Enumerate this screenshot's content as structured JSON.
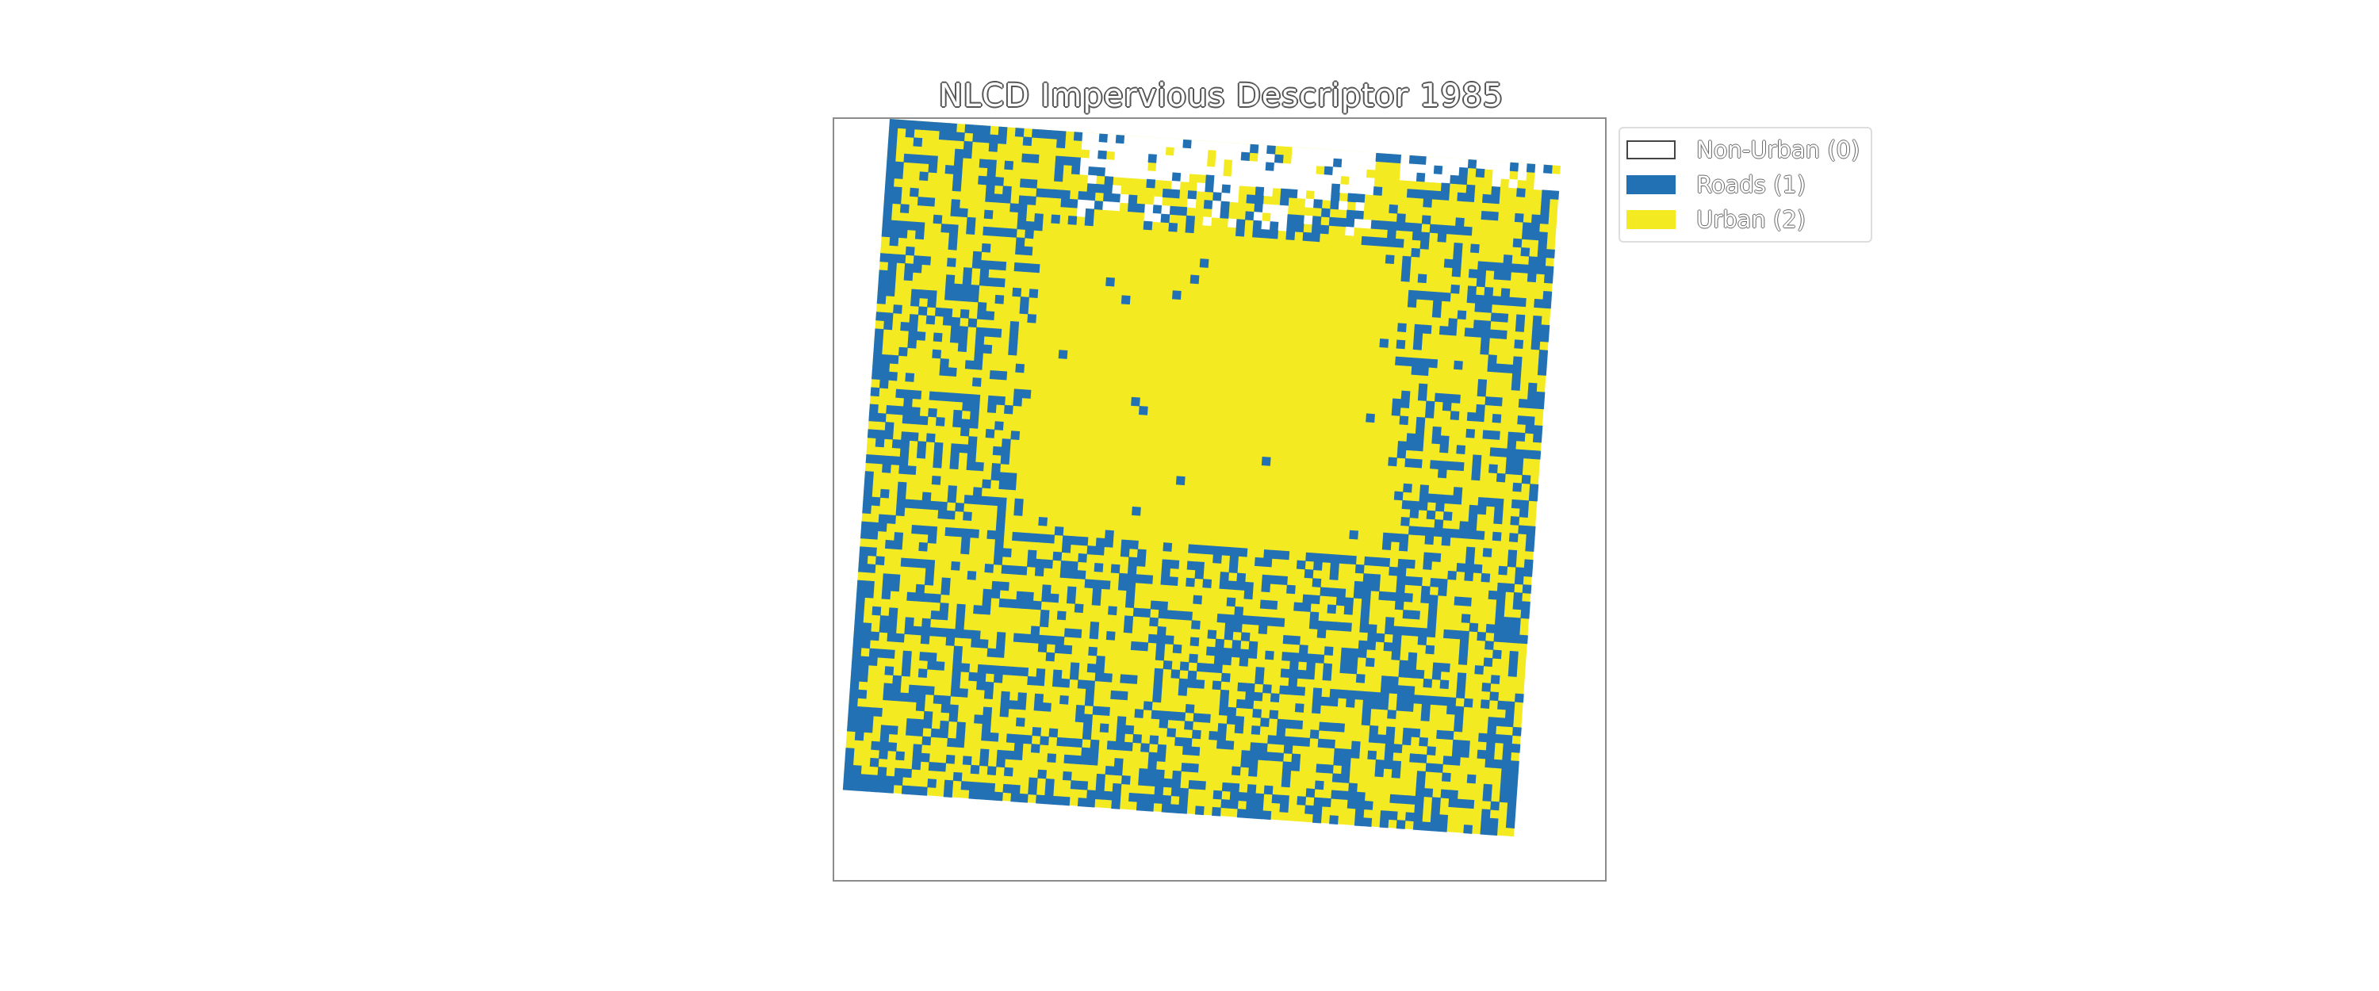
{
  "chart": {
    "title": "NLCD Impervious Descriptor 1985"
  },
  "legend": {
    "items": [
      {
        "label": "Non-Urban (0)",
        "color": "#ffffff",
        "border": "#444444"
      },
      {
        "label": "Roads (1)",
        "color": "#2271b5",
        "border": "#2271b5"
      },
      {
        "label": "Urban (2)",
        "color": "#f4ea22",
        "border": "#f4ea22"
      }
    ]
  },
  "chart_data": {
    "type": "heatmap",
    "title": "NLCD Impervious Descriptor 1985",
    "xlabel": "",
    "ylabel": "",
    "grid": false,
    "legend_position": "outside-top-right",
    "classes": [
      {
        "value": 0,
        "name": "Non-Urban (0)",
        "color": "#ffffff"
      },
      {
        "value": 1,
        "name": "Roads (1)",
        "color": "#2271b5"
      },
      {
        "value": 2,
        "name": "Urban (2)",
        "color": "#f4ea22"
      }
    ],
    "rotation_deg": 4,
    "dominant_urban_core": true,
    "roads_concentrated_on_edges": [
      "west",
      "south",
      "east"
    ],
    "non_urban_gaps_top_edge": true
  }
}
